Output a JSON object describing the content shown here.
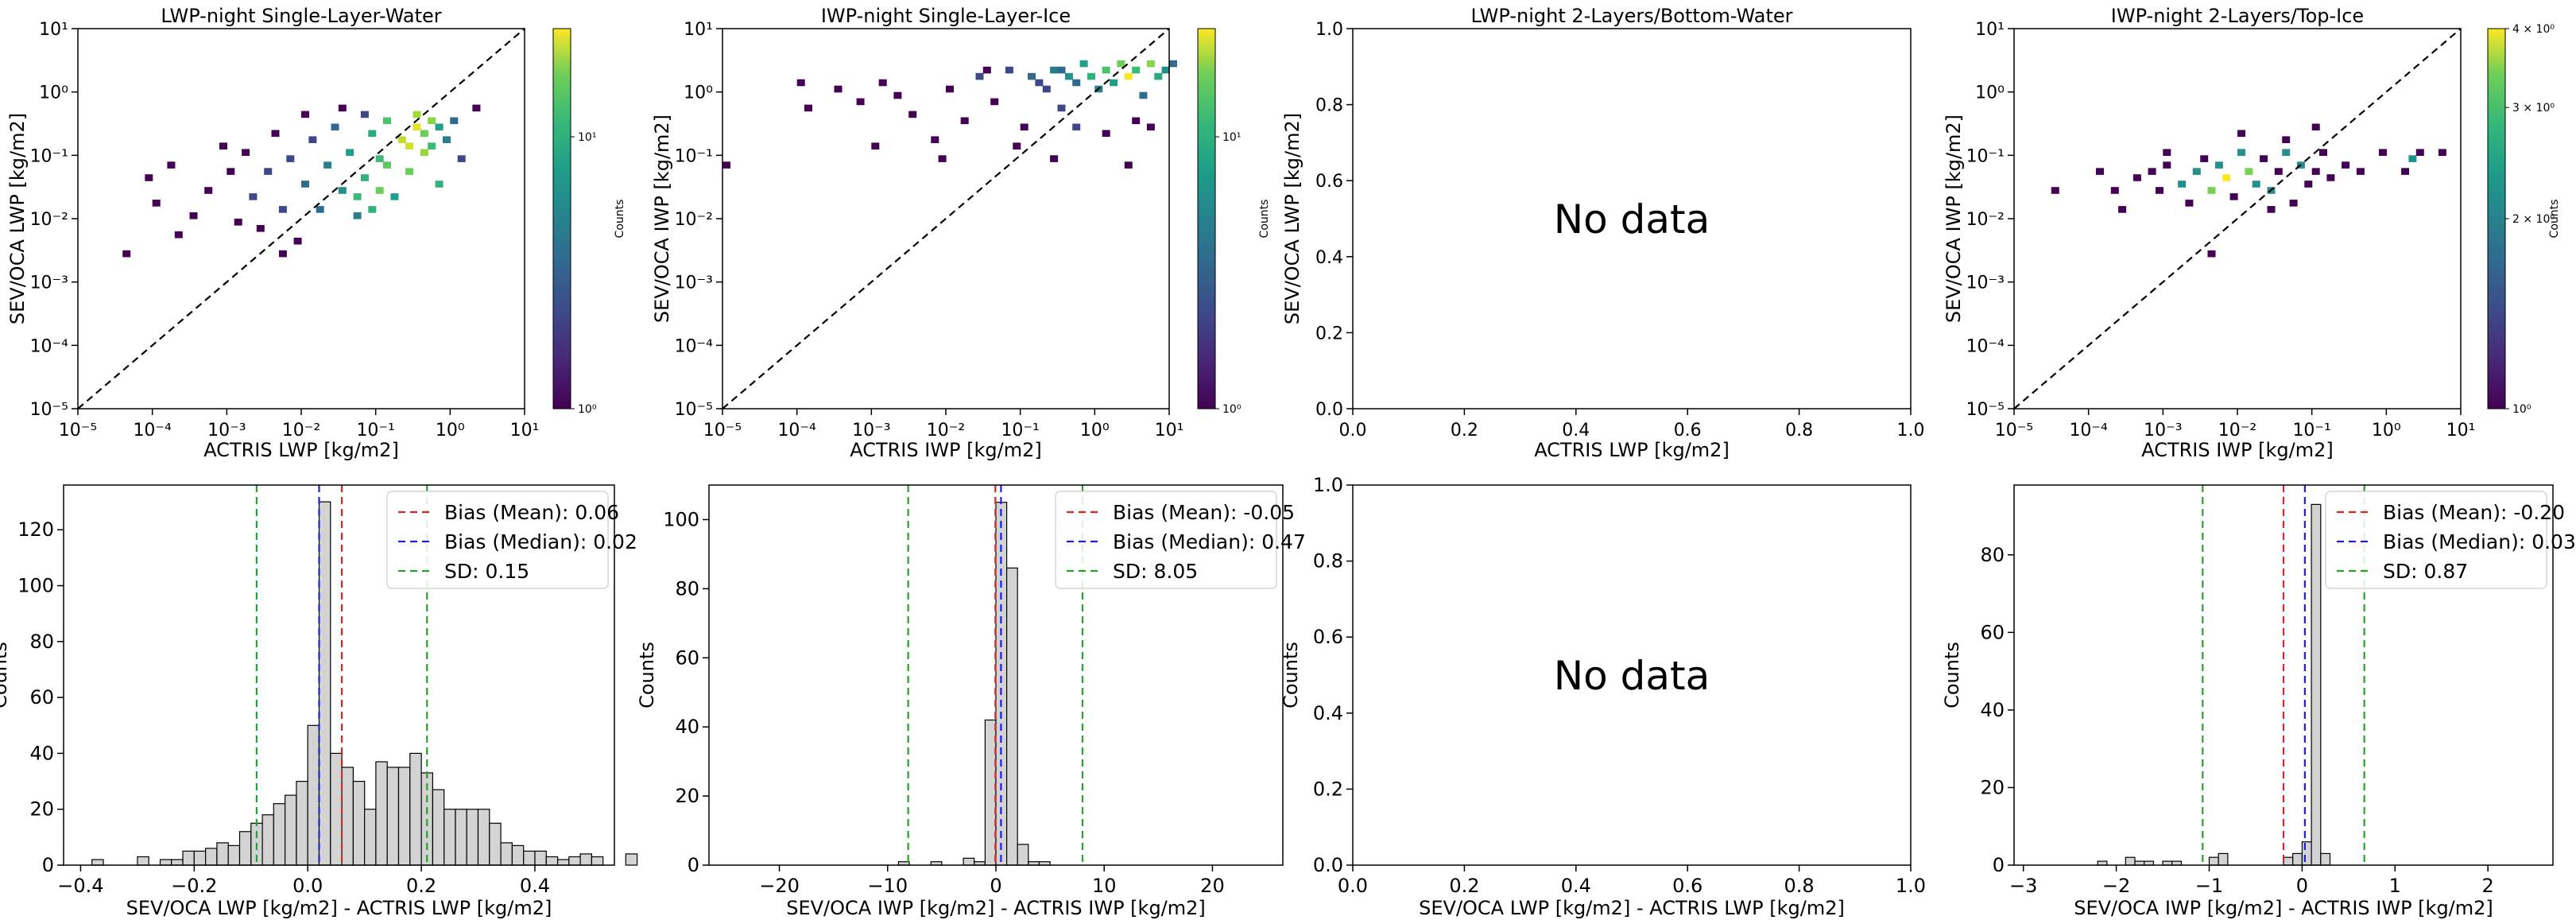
{
  "figure": {
    "title": ""
  },
  "colorbar_label": "Counts",
  "no_data_text": "No data",
  "chart_data": [
    {
      "type": "heatmap",
      "id": "p1",
      "title": "LWP-night Single-Layer-Water",
      "xlabel": "ACTRIS LWP [kg/m2]",
      "ylabel": "SEV/OCA LWP [kg/m2]",
      "scale": "log",
      "xlim_exp": [
        -5,
        1
      ],
      "ylim_exp": [
        -5,
        1
      ],
      "diagonal": true,
      "xticks": [
        "10⁻⁵",
        "10⁻⁴",
        "10⁻³",
        "10⁻²",
        "10⁻¹",
        "10⁰",
        "10¹"
      ],
      "yticks": [
        "10⁻⁵",
        "10⁻⁴",
        "10⁻³",
        "10⁻²",
        "10⁻¹",
        "10⁰",
        "10¹"
      ],
      "colorbar": {
        "label": "Counts",
        "ticks": [
          "10⁰",
          "10¹"
        ],
        "min": 1,
        "max": 25,
        "log": true
      },
      "cells": [
        [
          -4.1,
          -1.4,
          1
        ],
        [
          -4.0,
          -1.8,
          1
        ],
        [
          -3.8,
          -1.2,
          1
        ],
        [
          -3.7,
          -2.3,
          1
        ],
        [
          -3.5,
          -2.0,
          1
        ],
        [
          -3.3,
          -1.6,
          1
        ],
        [
          -3.1,
          -0.9,
          1
        ],
        [
          -3.0,
          -1.3,
          1
        ],
        [
          -2.9,
          -2.1,
          1
        ],
        [
          -2.8,
          -1.0,
          1
        ],
        [
          -2.7,
          -1.7,
          2
        ],
        [
          -2.6,
          -2.2,
          1
        ],
        [
          -2.5,
          -1.3,
          2
        ],
        [
          -2.4,
          -0.7,
          1
        ],
        [
          -2.3,
          -1.9,
          2
        ],
        [
          -2.2,
          -1.1,
          2
        ],
        [
          -2.1,
          -2.4,
          1
        ],
        [
          -2.0,
          -1.5,
          3
        ],
        [
          -1.9,
          -0.8,
          2
        ],
        [
          -1.8,
          -1.9,
          3
        ],
        [
          -1.7,
          -1.2,
          4
        ],
        [
          -1.6,
          -0.6,
          3
        ],
        [
          -1.5,
          -1.6,
          5
        ],
        [
          -1.4,
          -1.0,
          6
        ],
        [
          -1.3,
          -2.0,
          4
        ],
        [
          -1.2,
          -1.4,
          8
        ],
        [
          -1.1,
          -0.7,
          7
        ],
        [
          -1.0,
          -1.1,
          9
        ],
        [
          -0.9,
          -0.5,
          10
        ],
        [
          -0.8,
          -1.7,
          6
        ],
        [
          -0.7,
          -0.8,
          18
        ],
        [
          -0.6,
          -1.3,
          12
        ],
        [
          -0.5,
          -0.6,
          22
        ],
        [
          -0.4,
          -1.0,
          15
        ],
        [
          -0.3,
          -0.5,
          14
        ],
        [
          -0.2,
          -1.5,
          8
        ],
        [
          -1.0,
          -1.6,
          12
        ],
        [
          -1.1,
          -1.9,
          8
        ],
        [
          -1.3,
          -1.7,
          9
        ],
        [
          -0.9,
          -1.2,
          11
        ],
        [
          -0.6,
          -0.9,
          20
        ],
        [
          -0.5,
          -0.4,
          16
        ],
        [
          -0.4,
          -0.7,
          12
        ],
        [
          -0.3,
          -0.9,
          9
        ],
        [
          -0.2,
          -0.6,
          6
        ],
        [
          -0.1,
          -0.8,
          4
        ],
        [
          0.0,
          -0.5,
          3
        ],
        [
          0.1,
          -1.1,
          2
        ],
        [
          -2.0,
          -0.4,
          1
        ],
        [
          -1.5,
          -0.3,
          1
        ],
        [
          -1.2,
          -0.4,
          2
        ],
        [
          0.3,
          -0.3,
          1
        ],
        [
          -4.4,
          -2.6,
          1
        ],
        [
          -2.3,
          -2.6,
          1
        ]
      ]
    },
    {
      "type": "heatmap",
      "id": "p2",
      "title": "IWP-night Single-Layer-Ice",
      "xlabel": "ACTRIS IWP [kg/m2]",
      "ylabel": "SEV/OCA IWP [kg/m2]",
      "scale": "log",
      "xlim_exp": [
        -5,
        1
      ],
      "ylim_exp": [
        -5,
        1
      ],
      "diagonal": true,
      "xticks": [
        "10⁻⁵",
        "10⁻⁴",
        "10⁻³",
        "10⁻²",
        "10⁻¹",
        "10⁰",
        "10¹"
      ],
      "yticks": [
        "10⁻⁵",
        "10⁻⁴",
        "10⁻³",
        "10⁻²",
        "10⁻¹",
        "10⁰",
        "10¹"
      ],
      "colorbar": {
        "label": "Counts",
        "ticks": [
          "10⁰",
          "10¹"
        ],
        "min": 1,
        "max": 25,
        "log": true
      },
      "cells": [
        [
          -5.0,
          -1.2,
          1
        ],
        [
          -4.0,
          0.1,
          1
        ],
        [
          -3.9,
          -0.3,
          1
        ],
        [
          -3.2,
          -0.2,
          1
        ],
        [
          -3.0,
          -0.9,
          1
        ],
        [
          -2.9,
          0.1,
          1
        ],
        [
          -2.5,
          -0.4,
          1
        ],
        [
          -2.2,
          -0.8,
          1
        ],
        [
          -2.0,
          0.0,
          1
        ],
        [
          -1.8,
          -0.5,
          1
        ],
        [
          -1.6,
          0.2,
          2
        ],
        [
          -1.4,
          -0.2,
          1
        ],
        [
          -1.2,
          0.3,
          2
        ],
        [
          -1.0,
          -0.6,
          1
        ],
        [
          -0.9,
          0.2,
          3
        ],
        [
          -0.7,
          0.0,
          2
        ],
        [
          -0.6,
          0.3,
          4
        ],
        [
          -0.5,
          -0.3,
          2
        ],
        [
          -0.4,
          0.2,
          5
        ],
        [
          -0.3,
          0.1,
          3
        ],
        [
          -0.2,
          0.4,
          6
        ],
        [
          -0.1,
          0.2,
          8
        ],
        [
          0.0,
          0.0,
          4
        ],
        [
          0.1,
          0.3,
          10
        ],
        [
          0.2,
          0.1,
          6
        ],
        [
          0.3,
          0.4,
          12
        ],
        [
          0.4,
          0.2,
          25
        ],
        [
          0.5,
          0.3,
          9
        ],
        [
          0.6,
          -0.1,
          3
        ],
        [
          0.7,
          0.4,
          14
        ],
        [
          0.8,
          0.2,
          7
        ],
        [
          0.9,
          0.3,
          5
        ],
        [
          1.0,
          0.4,
          3
        ],
        [
          -0.5,
          0.3,
          3
        ],
        [
          -0.8,
          0.1,
          2
        ],
        [
          -1.5,
          0.3,
          1
        ],
        [
          -2.7,
          -0.1,
          1
        ],
        [
          -3.5,
          0.0,
          1
        ],
        [
          -0.3,
          -0.6,
          2
        ],
        [
          0.1,
          -0.7,
          1
        ],
        [
          0.5,
          -0.5,
          1
        ],
        [
          0.7,
          -0.6,
          1
        ],
        [
          -1.1,
          -0.9,
          1
        ],
        [
          -0.6,
          -1.1,
          1
        ],
        [
          0.4,
          -1.2,
          1
        ],
        [
          -2.1,
          -1.1,
          1
        ]
      ]
    },
    {
      "type": "heatmap",
      "id": "p3",
      "title": "LWP-night 2-Layers/Bottom-Water",
      "xlabel": "ACTRIS LWP [kg/m2]",
      "ylabel": "SEV/OCA LWP [kg/m2]",
      "scale": "linear",
      "xlim": [
        0.0,
        1.0
      ],
      "ylim": [
        0.0,
        1.0
      ],
      "xticks": [
        "0.0",
        "0.2",
        "0.4",
        "0.6",
        "0.8",
        "1.0"
      ],
      "yticks": [
        "0.0",
        "0.2",
        "0.4",
        "0.6",
        "0.8",
        "1.0"
      ],
      "no_data": true,
      "cells": []
    },
    {
      "type": "heatmap",
      "id": "p4",
      "title": "IWP-night 2-Layers/Top-Ice",
      "xlabel": "ACTRIS IWP [kg/m2]",
      "ylabel": "SEV/OCA IWP [kg/m2]",
      "scale": "log",
      "xlim_exp": [
        -5,
        1
      ],
      "ylim_exp": [
        -5,
        1
      ],
      "diagonal": true,
      "xticks": [
        "10⁻⁵",
        "10⁻⁴",
        "10⁻³",
        "10⁻²",
        "10⁻¹",
        "10⁰",
        "10¹"
      ],
      "yticks": [
        "10⁻⁵",
        "10⁻⁴",
        "10⁻³",
        "10⁻²",
        "10⁻¹",
        "10⁰",
        "10¹"
      ],
      "colorbar": {
        "label": "Counts",
        "ticks": [
          "10⁰",
          "2 × 10⁰",
          "3 × 10⁰",
          "4 × 10⁰"
        ],
        "min": 1,
        "max": 4,
        "log": true
      },
      "cells": [
        [
          -4.5,
          -1.6,
          1
        ],
        [
          -3.9,
          -1.3,
          1
        ],
        [
          -3.7,
          -1.6,
          1
        ],
        [
          -3.6,
          -1.9,
          1
        ],
        [
          -3.4,
          -1.4,
          1
        ],
        [
          -3.2,
          -1.3,
          1
        ],
        [
          -3.1,
          -1.6,
          1
        ],
        [
          -3.0,
          -1.2,
          1
        ],
        [
          -2.8,
          -1.5,
          2
        ],
        [
          -2.7,
          -1.8,
          1
        ],
        [
          -2.6,
          -1.3,
          2
        ],
        [
          -2.5,
          -1.1,
          1
        ],
        [
          -2.4,
          -1.6,
          3
        ],
        [
          -2.3,
          -1.2,
          2
        ],
        [
          -2.2,
          -1.4,
          4
        ],
        [
          -2.1,
          -1.7,
          1
        ],
        [
          -2.0,
          -1.0,
          2
        ],
        [
          -1.9,
          -1.3,
          3
        ],
        [
          -1.8,
          -1.5,
          2
        ],
        [
          -1.7,
          -1.1,
          1
        ],
        [
          -1.6,
          -1.6,
          2
        ],
        [
          -1.5,
          -1.3,
          1
        ],
        [
          -1.4,
          -1.0,
          2
        ],
        [
          -1.3,
          -1.8,
          1
        ],
        [
          -1.2,
          -1.2,
          2
        ],
        [
          -1.1,
          -1.5,
          1
        ],
        [
          -1.0,
          -1.3,
          1
        ],
        [
          -0.9,
          -1.0,
          1
        ],
        [
          -0.8,
          -1.4,
          1
        ],
        [
          -0.6,
          -1.2,
          1
        ],
        [
          -0.4,
          -1.3,
          1
        ],
        [
          -0.1,
          -1.0,
          1
        ],
        [
          0.2,
          -1.3,
          1
        ],
        [
          0.3,
          -1.1,
          2
        ],
        [
          0.4,
          -1.0,
          1
        ],
        [
          0.7,
          -1.0,
          1
        ],
        [
          -2.4,
          -2.6,
          1
        ],
        [
          -1.6,
          -1.9,
          1
        ],
        [
          -2.0,
          -0.7,
          1
        ],
        [
          -1.0,
          -0.6,
          1
        ],
        [
          -1.4,
          -0.8,
          1
        ],
        [
          -3.0,
          -1.0,
          1
        ]
      ]
    },
    {
      "type": "bar",
      "id": "h1",
      "title": "",
      "xlabel": "SEV/OCA LWP [kg/m2] - ACTRIS LWP [kg/m2]",
      "ylabel": "Counts",
      "xlim": [
        -0.43,
        0.54
      ],
      "ylim": [
        0,
        136
      ],
      "xticks": [
        -0.4,
        -0.2,
        0.0,
        0.2,
        0.4
      ],
      "xtick_labels": [
        "−0.4",
        "−0.2",
        "0.0",
        "0.2",
        "0.4"
      ],
      "yticks": [
        0,
        20,
        40,
        60,
        80,
        100,
        120
      ],
      "bin_start": -0.4,
      "bin_width": 0.02,
      "values": [
        0,
        2,
        0,
        0,
        0,
        3,
        0,
        2,
        2,
        5,
        5,
        6,
        8,
        7,
        12,
        15,
        18,
        22,
        25,
        30,
        50,
        130,
        40,
        35,
        30,
        20,
        37,
        35,
        35,
        40,
        33,
        27,
        20,
        20,
        20,
        20,
        15,
        8,
        7,
        5,
        5,
        3,
        2,
        3,
        4,
        3,
        0,
        0,
        4
      ],
      "lines": [
        {
          "label": "Bias (Mean): 0.06",
          "value": 0.06,
          "color": "#d62728"
        },
        {
          "label": "Bias (Median): 0.02",
          "value": 0.02,
          "color": "#1f1fd6"
        },
        {
          "label": "SD: 0.15",
          "value": 0.15,
          "color": "#2ca02c",
          "symmetric": true,
          "center": 0.06
        }
      ]
    },
    {
      "type": "bar",
      "id": "h2",
      "title": "",
      "xlabel": "SEV/OCA IWP [kg/m2] - ACTRIS IWP [kg/m2]",
      "ylabel": "Counts",
      "xlim": [
        -26.5,
        26.5
      ],
      "ylim": [
        0,
        110
      ],
      "xticks": [
        -20,
        -10,
        0,
        10,
        20
      ],
      "xtick_labels": [
        "−20",
        "−10",
        "0",
        "10",
        "20"
      ],
      "yticks": [
        0,
        20,
        40,
        60,
        80,
        100
      ],
      "bin_start": -25,
      "bin_width": 1,
      "values": [
        0,
        0,
        0,
        0,
        0,
        0,
        0,
        0,
        0,
        0,
        0,
        0,
        0,
        0,
        0,
        0,
        1,
        0,
        0,
        1,
        0,
        0,
        2,
        1,
        42,
        105,
        86,
        6,
        1,
        1,
        0,
        0,
        0,
        0,
        0,
        0,
        0,
        0,
        0,
        0,
        0,
        0,
        0,
        0,
        0,
        0,
        0,
        0,
        0,
        0
      ],
      "lines": [
        {
          "label": "Bias (Mean): -0.05",
          "value": -0.05,
          "color": "#d62728"
        },
        {
          "label": "Bias (Median): 0.47",
          "value": 0.47,
          "color": "#1f1fd6"
        },
        {
          "label": "SD: 8.05",
          "value": 8.05,
          "color": "#2ca02c",
          "symmetric": true,
          "center": -0.05
        }
      ]
    },
    {
      "type": "bar",
      "id": "h3",
      "title": "",
      "xlabel": "SEV/OCA LWP [kg/m2] - ACTRIS LWP [kg/m2]",
      "ylabel": "Counts",
      "xlim": [
        0.0,
        1.0
      ],
      "ylim": [
        0.0,
        1.0
      ],
      "xticks": [
        0.0,
        0.2,
        0.4,
        0.6,
        0.8,
        1.0
      ],
      "xtick_labels": [
        "0.0",
        "0.2",
        "0.4",
        "0.6",
        "0.8",
        "1.0"
      ],
      "yticks": [
        0.0,
        0.2,
        0.4,
        0.6,
        0.8,
        1.0
      ],
      "ytick_labels": [
        "0.0",
        "0.2",
        "0.4",
        "0.6",
        "0.8",
        "1.0"
      ],
      "no_data": true,
      "values": [],
      "lines": []
    },
    {
      "type": "bar",
      "id": "h4",
      "title": "",
      "xlabel": "SEV/OCA IWP [kg/m2] - ACTRIS IWP [kg/m2]",
      "ylabel": "Counts",
      "xlim": [
        -3.1,
        2.7
      ],
      "ylim": [
        0,
        98
      ],
      "xticks": [
        -3,
        -2,
        -1,
        0,
        1,
        2
      ],
      "xtick_labels": [
        "−3",
        "−2",
        "−1",
        "0",
        "1",
        "2"
      ],
      "yticks": [
        0,
        20,
        40,
        60,
        80
      ],
      "bin_start": -2.5,
      "bin_width": 0.1,
      "values": [
        0,
        0,
        0,
        1,
        0,
        0,
        2,
        1,
        1,
        0,
        1,
        1,
        0,
        0,
        0,
        2,
        3,
        0,
        0,
        0,
        0,
        0,
        0,
        2,
        3,
        6,
        93,
        3,
        0,
        0
      ],
      "lines": [
        {
          "label": "Bias (Mean): -0.20",
          "value": -0.2,
          "color": "#d62728"
        },
        {
          "label": "Bias (Median): 0.03",
          "value": 0.03,
          "color": "#1f1fd6"
        },
        {
          "label": "SD: 0.87",
          "value": 0.87,
          "color": "#2ca02c",
          "symmetric": true,
          "center": -0.2
        }
      ]
    }
  ]
}
